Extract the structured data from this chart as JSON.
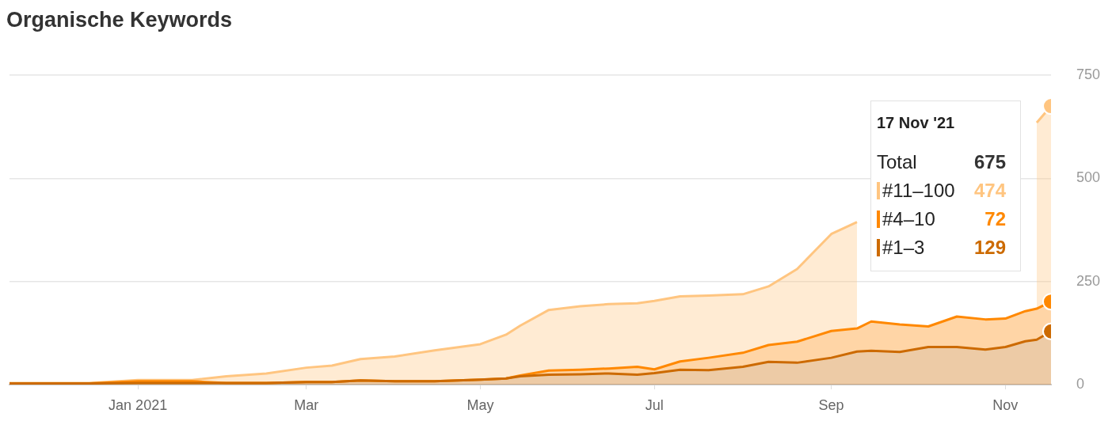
{
  "chart_data": {
    "type": "area",
    "title": "Organische Keywords",
    "stacked": true,
    "x": [
      "2020-11-17",
      "2020-12-15",
      "2021-01-01",
      "2021-01-20",
      "2021-02-01",
      "2021-02-15",
      "2021-03-01",
      "2021-03-10",
      "2021-03-20",
      "2021-04-01",
      "2021-04-15",
      "2021-05-01",
      "2021-05-10",
      "2021-05-15",
      "2021-05-25",
      "2021-06-05",
      "2021-06-15",
      "2021-06-25",
      "2021-07-01",
      "2021-07-10",
      "2021-07-20",
      "2021-08-01",
      "2021-08-10",
      "2021-08-20",
      "2021-09-01",
      "2021-09-10",
      "2021-09-15",
      "2021-09-25",
      "2021-10-05",
      "2021-10-15",
      "2021-10-25",
      "2021-11-01",
      "2021-11-08",
      "2021-11-12",
      "2021-11-17"
    ],
    "series": [
      {
        "name": "#1–3",
        "color": "#cc6a00",
        "values": [
          3,
          3,
          4,
          4,
          4,
          4,
          6,
          6,
          10,
          8,
          8,
          12,
          15,
          20,
          24,
          25,
          27,
          24,
          28,
          36,
          35,
          43,
          55,
          53,
          65,
          80,
          82,
          79,
          91,
          91,
          85,
          91,
          105,
          109,
          129
        ]
      },
      {
        "name": "#4–10",
        "color": "#ff8800",
        "values": [
          0,
          0,
          4,
          4,
          0,
          0,
          0,
          0,
          0,
          0,
          0,
          0,
          0,
          2,
          10,
          11,
          12,
          19,
          9,
          20,
          30,
          34,
          41,
          51,
          65,
          56,
          71,
          67,
          50,
          74,
          73,
          69,
          73,
          75,
          72
        ]
      },
      {
        "name": "#11–100",
        "color": "#ffc580",
        "values": [
          1,
          1,
          3,
          3,
          16,
          23,
          35,
          40,
          52,
          60,
          75,
          86,
          106,
          121,
          147,
          154,
          156,
          154,
          166,
          158,
          151,
          142,
          142,
          176,
          235,
          258,
          null,
          null,
          null,
          null,
          null,
          null,
          null,
          451,
          474
        ]
      }
    ],
    "xlim": [
      "2020-11-17",
      "2021-11-17"
    ],
    "xticks": [
      {
        "value": "2021-01-01",
        "label": "Jan 2021"
      },
      {
        "value": "2021-03-01",
        "label": "Mar"
      },
      {
        "value": "2021-05-01",
        "label": "May"
      },
      {
        "value": "2021-07-01",
        "label": "Jul"
      },
      {
        "value": "2021-09-01",
        "label": "Sep"
      },
      {
        "value": "2021-11-01",
        "label": "Nov"
      }
    ],
    "ylim": [
      0,
      750
    ],
    "yticks": [
      0,
      250,
      500,
      750
    ],
    "grid": "y",
    "legend": "top right",
    "annotations": [
      "17 Nov '21",
      "Total",
      "675",
      "474",
      "72",
      "129"
    ]
  }
}
